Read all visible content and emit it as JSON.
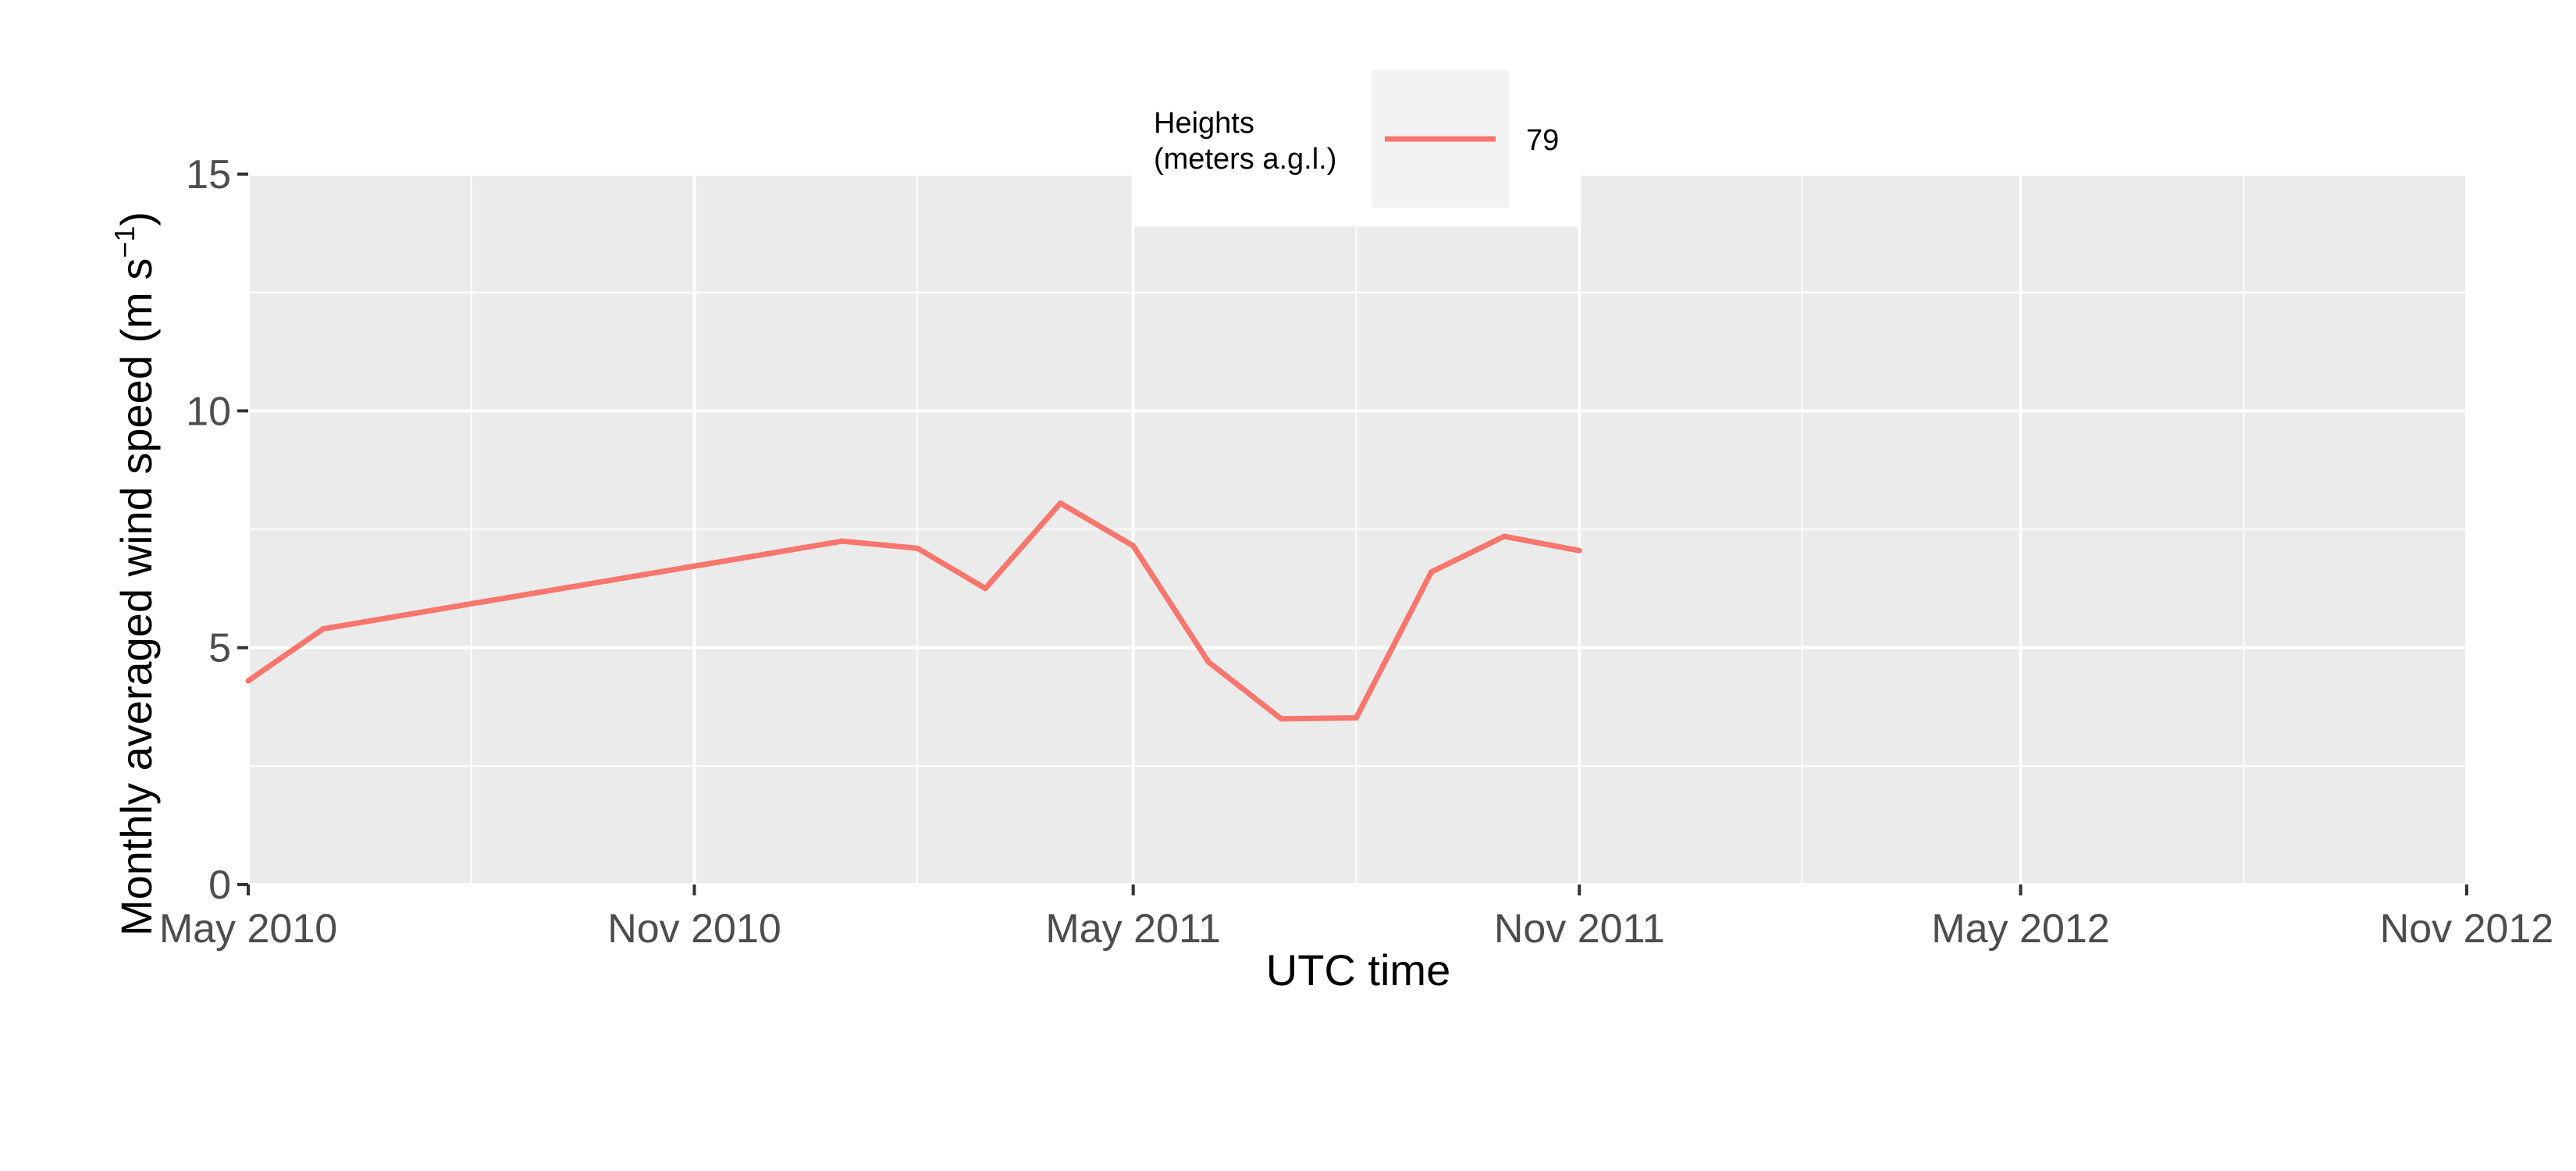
{
  "chart_data": {
    "type": "line",
    "xlabel": "UTC time",
    "ylabel": {
      "text": "Monthly averaged wind speed (m s",
      "superscript": "−1",
      "close": ")"
    },
    "x_ticks": [
      "May 2010",
      "Nov 2010",
      "May 2011",
      "Nov 2011",
      "May 2012",
      "Nov 2012"
    ],
    "y_ticks": [
      "0",
      "5",
      "10",
      "15"
    ],
    "xlim": [
      "2010-05-01",
      "2012-11-01"
    ],
    "ylim": [
      0,
      15
    ],
    "grid": true,
    "legend": {
      "placement": "top",
      "title_line1": "Heights",
      "title_line2": "(meters a.g.l.)"
    },
    "series": [
      {
        "name": "79",
        "color": "#F8766D",
        "points": [
          {
            "x": "2010-05-01",
            "y": 4.3
          },
          {
            "x": "2010-06-01",
            "y": 5.4
          },
          {
            "x": "2011-01-01",
            "y": 7.25
          },
          {
            "x": "2011-02-01",
            "y": 7.1
          },
          {
            "x": "2011-03-01",
            "y": 6.25
          },
          {
            "x": "2011-04-01",
            "y": 8.05
          },
          {
            "x": "2011-05-01",
            "y": 7.15
          },
          {
            "x": "2011-06-01",
            "y": 4.7
          },
          {
            "x": "2011-07-01",
            "y": 3.5
          },
          {
            "x": "2011-08-01",
            "y": 3.52
          },
          {
            "x": "2011-09-01",
            "y": 6.6
          },
          {
            "x": "2011-10-01",
            "y": 7.35
          },
          {
            "x": "2011-11-01",
            "y": 7.05
          }
        ]
      }
    ]
  }
}
